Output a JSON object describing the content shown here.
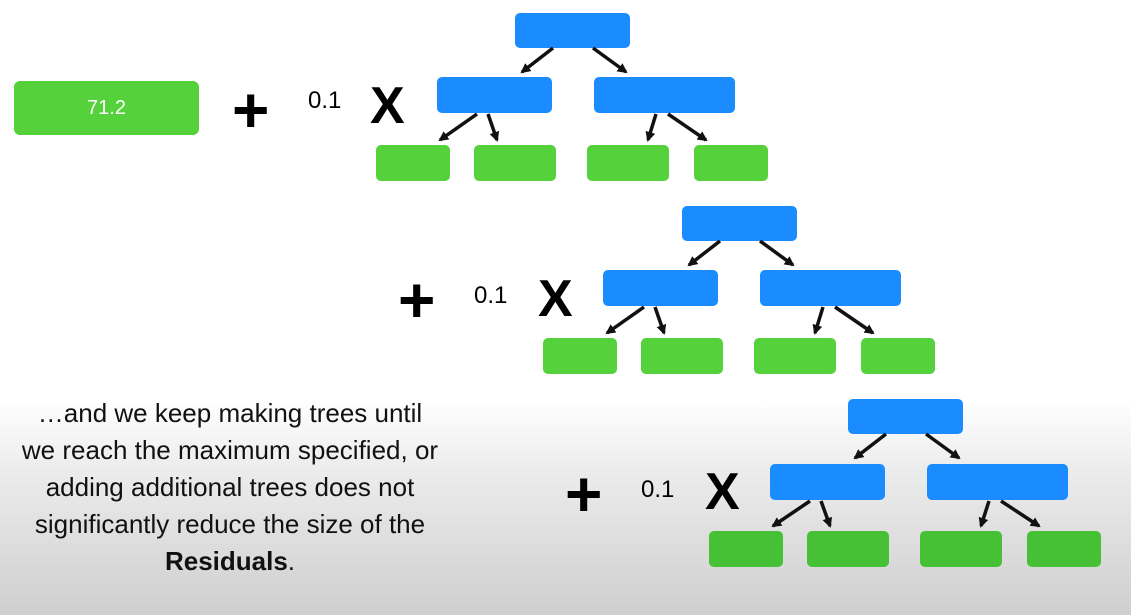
{
  "initial_leaf": {
    "value": "71.2"
  },
  "operators": {
    "plus": "+",
    "times": "X"
  },
  "trees": [
    {
      "learning_rate": "0.1"
    },
    {
      "learning_rate": "0.1"
    },
    {
      "learning_rate": "0.1"
    }
  ],
  "caption": {
    "text": "…and we keep making trees until we reach the maximum specified, or adding additional trees does not significantly reduce the size of the",
    "emphasis": "Residuals",
    "end": "."
  },
  "colors": {
    "node": "#1a8cff",
    "leaf": "#55d13c"
  }
}
